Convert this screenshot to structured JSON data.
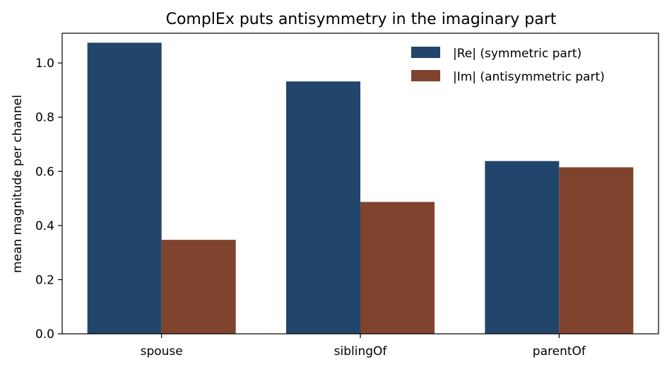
{
  "chart_data": {
    "type": "bar",
    "title": "ComplEx puts antisymmetry in the imaginary part",
    "xlabel": "",
    "ylabel": "mean magnitude per channel",
    "categories": [
      "spouse",
      "siblingOf",
      "parentOf"
    ],
    "series": [
      {
        "name": "|Re|  (symmetric part)",
        "color": "#22466b",
        "values": [
          1.075,
          0.932,
          0.638
        ]
      },
      {
        "name": "|Im|  (antisymmetric part)",
        "color": "#7f432e",
        "values": [
          0.347,
          0.487,
          0.615
        ]
      }
    ],
    "ylim": [
      0,
      1.11
    ],
    "yticks": [
      "0.0",
      "0.2",
      "0.4",
      "0.6",
      "0.8",
      "1.0"
    ],
    "grid": false,
    "legend": "top-right"
  }
}
